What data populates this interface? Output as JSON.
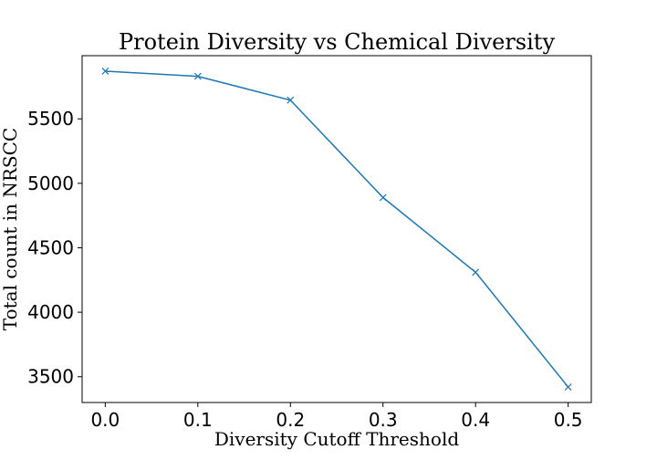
{
  "chart_data": {
    "type": "line",
    "title": "Protein Diversity vs Chemical Diversity",
    "xlabel": "Diversity Cutoff Threshold",
    "ylabel": "Total count in NRSCC",
    "x": [
      0.0,
      0.1,
      0.2,
      0.3,
      0.4,
      0.5
    ],
    "x_tick_labels": [
      "0.0",
      "0.1",
      "0.2",
      "0.3",
      "0.4",
      "0.5"
    ],
    "y_ticks": [
      3500,
      4000,
      4500,
      5000,
      5500
    ],
    "y_tick_labels": [
      "3500",
      "4000",
      "4500",
      "5000",
      "5500"
    ],
    "series": [
      {
        "values": [
          5870,
          5830,
          5645,
          4890,
          4310,
          3420
        ],
        "color": "#1f77b4",
        "marker": "x"
      }
    ],
    "xlim": [
      -0.025,
      0.525
    ],
    "ylim": [
      3300,
      5990
    ],
    "grid": false,
    "legend": "none"
  }
}
